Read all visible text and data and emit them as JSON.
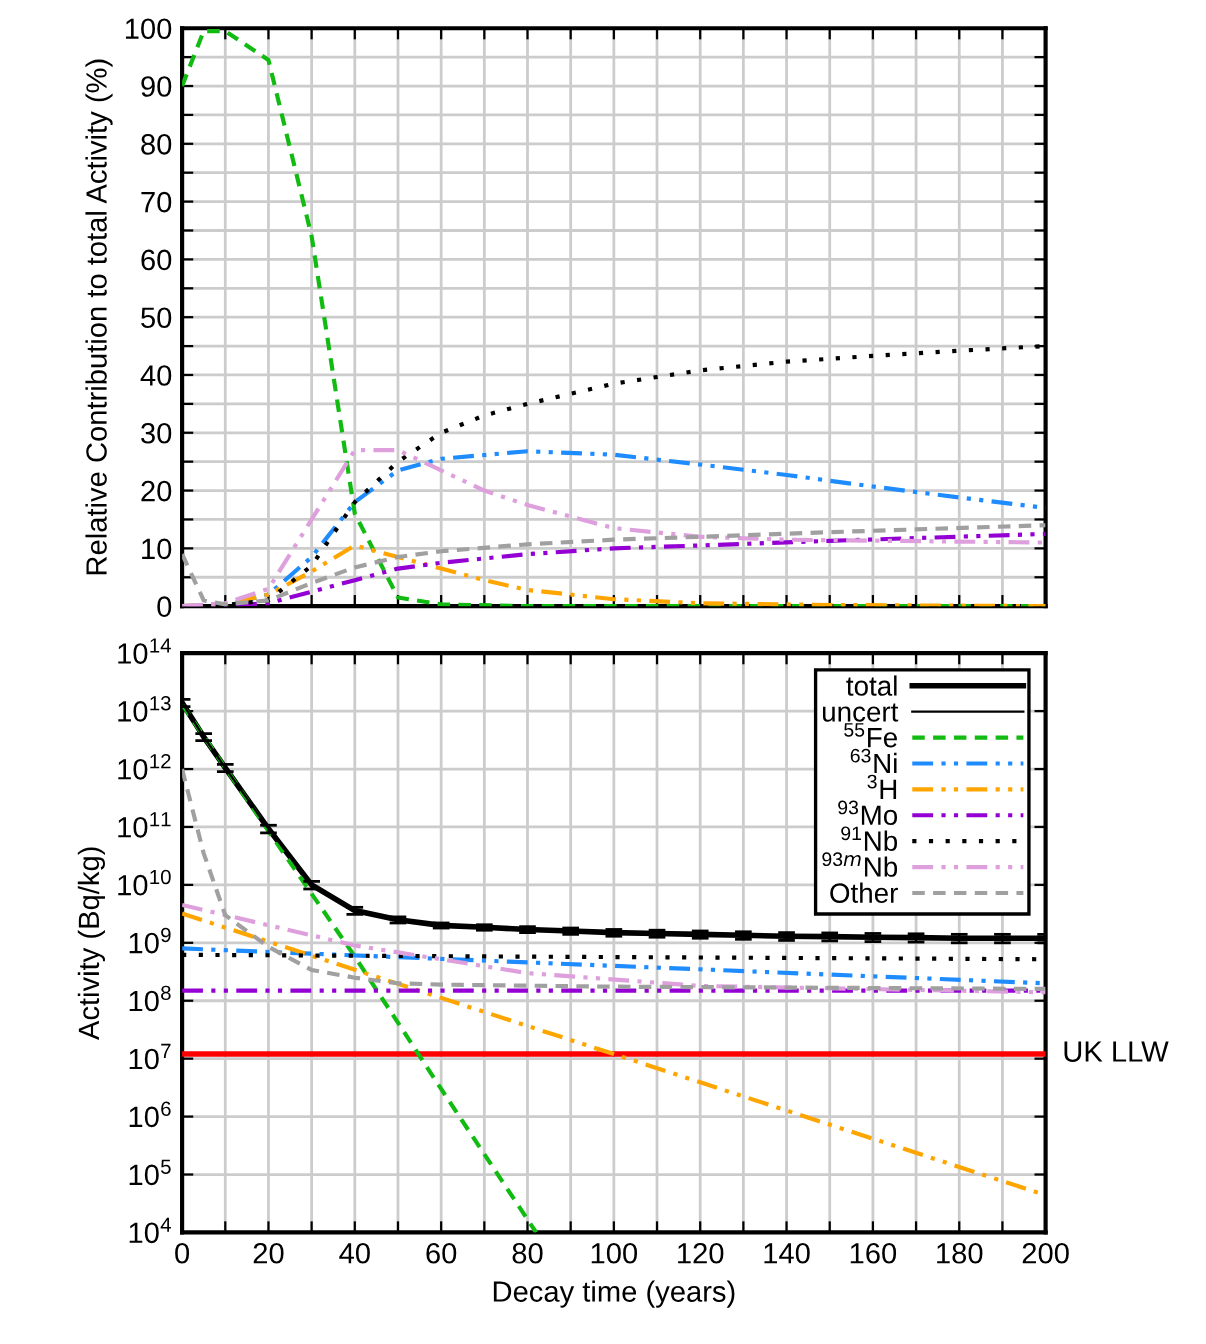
{
  "chart_data": [
    {
      "type": "line",
      "ylabel": "Relative Contribution to total Activity (%)",
      "xlim": [
        0,
        200
      ],
      "ylim": [
        0,
        100
      ],
      "xticks": [
        0,
        {
          "value": 10,
          "label": null
        },
        20,
        {
          "value": 30,
          "label": null
        },
        40,
        {
          "value": 50,
          "label": null
        },
        60,
        {
          "value": 70,
          "label": null
        },
        80,
        {
          "value": 90,
          "label": null
        },
        100,
        {
          "value": 110,
          "label": null
        },
        120,
        {
          "value": 130,
          "label": null
        },
        140,
        {
          "value": 150,
          "label": null
        },
        160,
        {
          "value": 170,
          "label": null
        },
        180,
        {
          "value": 190,
          "label": null
        },
        200
      ],
      "yticks": [
        0,
        {
          "value": 5,
          "label": null
        },
        10,
        {
          "value": 15,
          "label": null
        },
        20,
        {
          "value": 25,
          "label": null
        },
        30,
        {
          "value": 35,
          "label": null
        },
        40,
        {
          "value": 45,
          "label": null
        },
        50,
        {
          "value": 55,
          "label": null
        },
        60,
        {
          "value": 65,
          "label": null
        },
        70,
        {
          "value": 75,
          "label": null
        },
        80,
        {
          "value": 85,
          "label": null
        },
        90,
        {
          "value": 95,
          "label": null
        },
        100
      ],
      "tick_labels": "y",
      "grid": true,
      "legend": false,
      "series": [
        {
          "color": "#11bb11",
          "line_style": "dashed",
          "x": [
            0,
            5,
            10,
            20,
            30,
            40,
            50,
            60,
            80,
            100,
            200
          ],
          "values": [
            90,
            99.5,
            99.5,
            94.5,
            64,
            16,
            1.5,
            0.3,
            0,
            0,
            0
          ]
        },
        {
          "color": "#1e8cff",
          "line_style": "dashdot",
          "x": [
            0,
            10,
            20,
            30,
            40,
            50,
            60,
            80,
            100,
            120,
            140,
            160,
            180,
            200
          ],
          "values": [
            0,
            0.2,
            2,
            8.5,
            18,
            23.5,
            25.5,
            26.8,
            26.2,
            24.5,
            22.7,
            20.7,
            18.8,
            17
          ]
        },
        {
          "color": "#ffa500",
          "line_style": "dashdot",
          "x": [
            0,
            10,
            20,
            30,
            40,
            50,
            60,
            70,
            80,
            100,
            120,
            150,
            200
          ],
          "values": [
            0,
            0.3,
            2,
            6,
            10.5,
            8.5,
            6.5,
            4.5,
            2.8,
            1.2,
            0.5,
            0.2,
            0
          ]
        },
        {
          "color": "#9400d3",
          "line_style": "dashdot",
          "x": [
            0,
            10,
            20,
            30,
            40,
            50,
            60,
            80,
            100,
            120,
            150,
            200
          ],
          "values": [
            0,
            0.1,
            0.5,
            2.5,
            4.5,
            6.5,
            7.5,
            9,
            10,
            10.5,
            11.3,
            12.5
          ]
        },
        {
          "color": "#000000",
          "line_style": "dotted",
          "x": [
            0,
            10,
            20,
            30,
            40,
            50,
            60,
            70,
            80,
            100,
            120,
            140,
            160,
            180,
            200
          ],
          "values": [
            0,
            0.2,
            1,
            7,
            18,
            25,
            30,
            33,
            35,
            38.5,
            40.8,
            42.3,
            43.3,
            44.2,
            45
          ]
        },
        {
          "color": "#dda0dd",
          "line_style": "dashdot",
          "x": [
            0,
            10,
            20,
            30,
            40,
            50,
            60,
            70,
            80,
            100,
            120,
            140,
            200
          ],
          "values": [
            0,
            0.5,
            3,
            15,
            27,
            27,
            23.5,
            20,
            17.5,
            13.5,
            12,
            11.5,
            11
          ]
        },
        {
          "color": "#a0a0a0",
          "line_style": "dashed",
          "x": [
            0,
            5,
            10,
            20,
            30,
            40,
            50,
            60,
            80,
            100,
            120,
            150,
            200
          ],
          "values": [
            9,
            1,
            0.3,
            1,
            4,
            6.7,
            8.5,
            9.5,
            10.7,
            11.5,
            12,
            12.8,
            14
          ]
        }
      ]
    },
    {
      "type": "line",
      "xlabel": "Decay time (years)",
      "ylabel": "Activity (Bq/kg)",
      "log": "y",
      "xlim": [
        0,
        200
      ],
      "ylim": [
        10000,
        100000000000000
      ],
      "xticks": [
        0,
        {
          "value": 10,
          "label": null
        },
        20,
        {
          "value": 30,
          "label": null
        },
        40,
        {
          "value": 50,
          "label": null
        },
        60,
        {
          "value": 70,
          "label": null
        },
        80,
        {
          "value": 90,
          "label": null
        },
        100,
        {
          "value": 110,
          "label": null
        },
        120,
        {
          "value": 130,
          "label": null
        },
        140,
        {
          "value": 150,
          "label": null
        },
        160,
        {
          "value": 170,
          "label": null
        },
        180,
        {
          "value": 190,
          "label": null
        },
        200
      ],
      "yticks": [
        {
          "value": 10000,
          "label": "10$^{4}$"
        },
        {
          "value": 100000,
          "label": "10$^{5}$"
        },
        {
          "value": 1000000,
          "label": "10$^{6}$"
        },
        {
          "value": 10000000,
          "label": "10$^{7}$"
        },
        {
          "value": 100000000,
          "label": "10$^{8}$"
        },
        {
          "value": 1000000000,
          "label": "10$^{9}$"
        },
        {
          "value": 10000000000,
          "label": "10$^{10}$"
        },
        {
          "value": 100000000000,
          "label": "10$^{11}$"
        },
        {
          "value": 1000000000000,
          "label": "10$^{12}$"
        },
        {
          "value": 10000000000000,
          "label": "10$^{13}$"
        },
        {
          "value": 100000000000000,
          "label": "10$^{14}$"
        }
      ],
      "grid": true,
      "legend": "top right",
      "ref_lines": [
        {
          "axis": "y",
          "value": 12000000,
          "label": "UK LLW",
          "color": "#ff0000",
          "line_style": "solid"
        }
      ],
      "series": [
        {
          "name": "total",
          "color": "#000000",
          "line_style": "solid",
          "x": [
            0,
            5,
            10,
            20,
            30,
            40,
            50,
            60,
            70,
            80,
            90,
            100,
            110,
            120,
            130,
            140,
            150,
            160,
            170,
            180,
            190,
            200
          ],
          "values": [
            14000000000000.0,
            3600000000000.0,
            1050000000000.0,
            93000000000.0,
            10000000000.0,
            3600000000.0,
            2500000000.0,
            2000000000.0,
            1850000000.0,
            1700000000.0,
            1600000000.0,
            1500000000.0,
            1450000000.0,
            1400000000.0,
            1350000000.0,
            1300000000.0,
            1280000000.0,
            1250000000.0,
            1230000000.0,
            1200000000.0,
            1200000000.0,
            1200000000.0
          ]
        },
        {
          "name": "uncert",
          "color": "#000000",
          "line_style": "solid",
          "x": [
            0,
            5,
            10,
            20,
            30,
            40,
            50,
            60,
            70,
            80,
            90,
            100,
            110,
            120,
            130,
            140,
            150,
            160,
            170,
            180,
            190,
            200
          ],
          "values": [
            14000000000000.0,
            3600000000000.0,
            1050000000000.0,
            93000000000.0,
            10000000000.0,
            3600000000.0,
            2500000000.0,
            2000000000.0,
            1850000000.0,
            1700000000.0,
            1600000000.0,
            1500000000.0,
            1450000000.0,
            1400000000.0,
            1350000000.0,
            1300000000.0,
            1280000000.0,
            1250000000.0,
            1230000000.0,
            1200000000.0,
            1200000000.0,
            1200000000.0
          ],
          "errors": [
            2000000000000.0,
            500000000000.0,
            150000000000.0,
            14000000000.0,
            1500000000.0,
            500000000.0,
            300000000.0,
            200000000.0,
            200000000.0,
            200000000.0,
            200000000.0,
            200000000.0,
            200000000.0,
            200000000.0,
            200000000.0,
            200000000.0,
            200000000.0,
            200000000.0,
            200000000.0,
            200000000.0,
            200000000.0,
            200000000.0
          ]
        },
        {
          "name": "$^{55}$Fe",
          "color": "#11bb11",
          "line_style": "dashed",
          "x": [
            0,
            20,
            40,
            60,
            82
          ],
          "values": [
            13000000000000.0,
            85000000000.0,
            580000000.0,
            3000000.0,
            10000.0
          ]
        },
        {
          "name": "$^{63}$Ni",
          "color": "#1e8cff",
          "line_style": "dashdot",
          "x": [
            0,
            100,
            200
          ],
          "values": [
            800000000.0,
            400000000.0,
            200000000.0
          ]
        },
        {
          "name": "$^{3}$H",
          "color": "#ffa500",
          "line_style": "dashdot",
          "x": [
            0,
            100,
            200
          ],
          "values": [
            3200000000.0,
            12000000.0,
            44000.0
          ]
        },
        {
          "name": "$^{93}$Mo",
          "color": "#9400d3",
          "line_style": "dashdot",
          "x": [
            0,
            200
          ],
          "values": [
            150000000.0,
            150000000.0
          ]
        },
        {
          "name": "$^{91}$Nb",
          "color": "#000000",
          "line_style": "dotted",
          "x": [
            0,
            200
          ],
          "values": [
            620000000.0,
            520000000.0
          ]
        },
        {
          "name": "$^{93m}$Nb",
          "color": "#dda0dd",
          "line_style": "dashdot",
          "x": [
            0,
            40,
            80,
            120,
            200
          ],
          "values": [
            4500000000.0,
            900000000.0,
            300000000.0,
            180000000.0,
            140000000.0
          ]
        },
        {
          "name": "Other",
          "color": "#a0a0a0",
          "line_style": "dashed",
          "x": [
            0,
            5,
            10,
            20,
            30,
            40,
            50,
            60,
            100,
            200
          ],
          "values": [
            1000000000000.0,
            35000000000.0,
            3000000000.0,
            850000000.0,
            340000000.0,
            250000000.0,
            200000000.0,
            190000000.0,
            175000000.0,
            160000000.0
          ]
        }
      ]
    }
  ]
}
